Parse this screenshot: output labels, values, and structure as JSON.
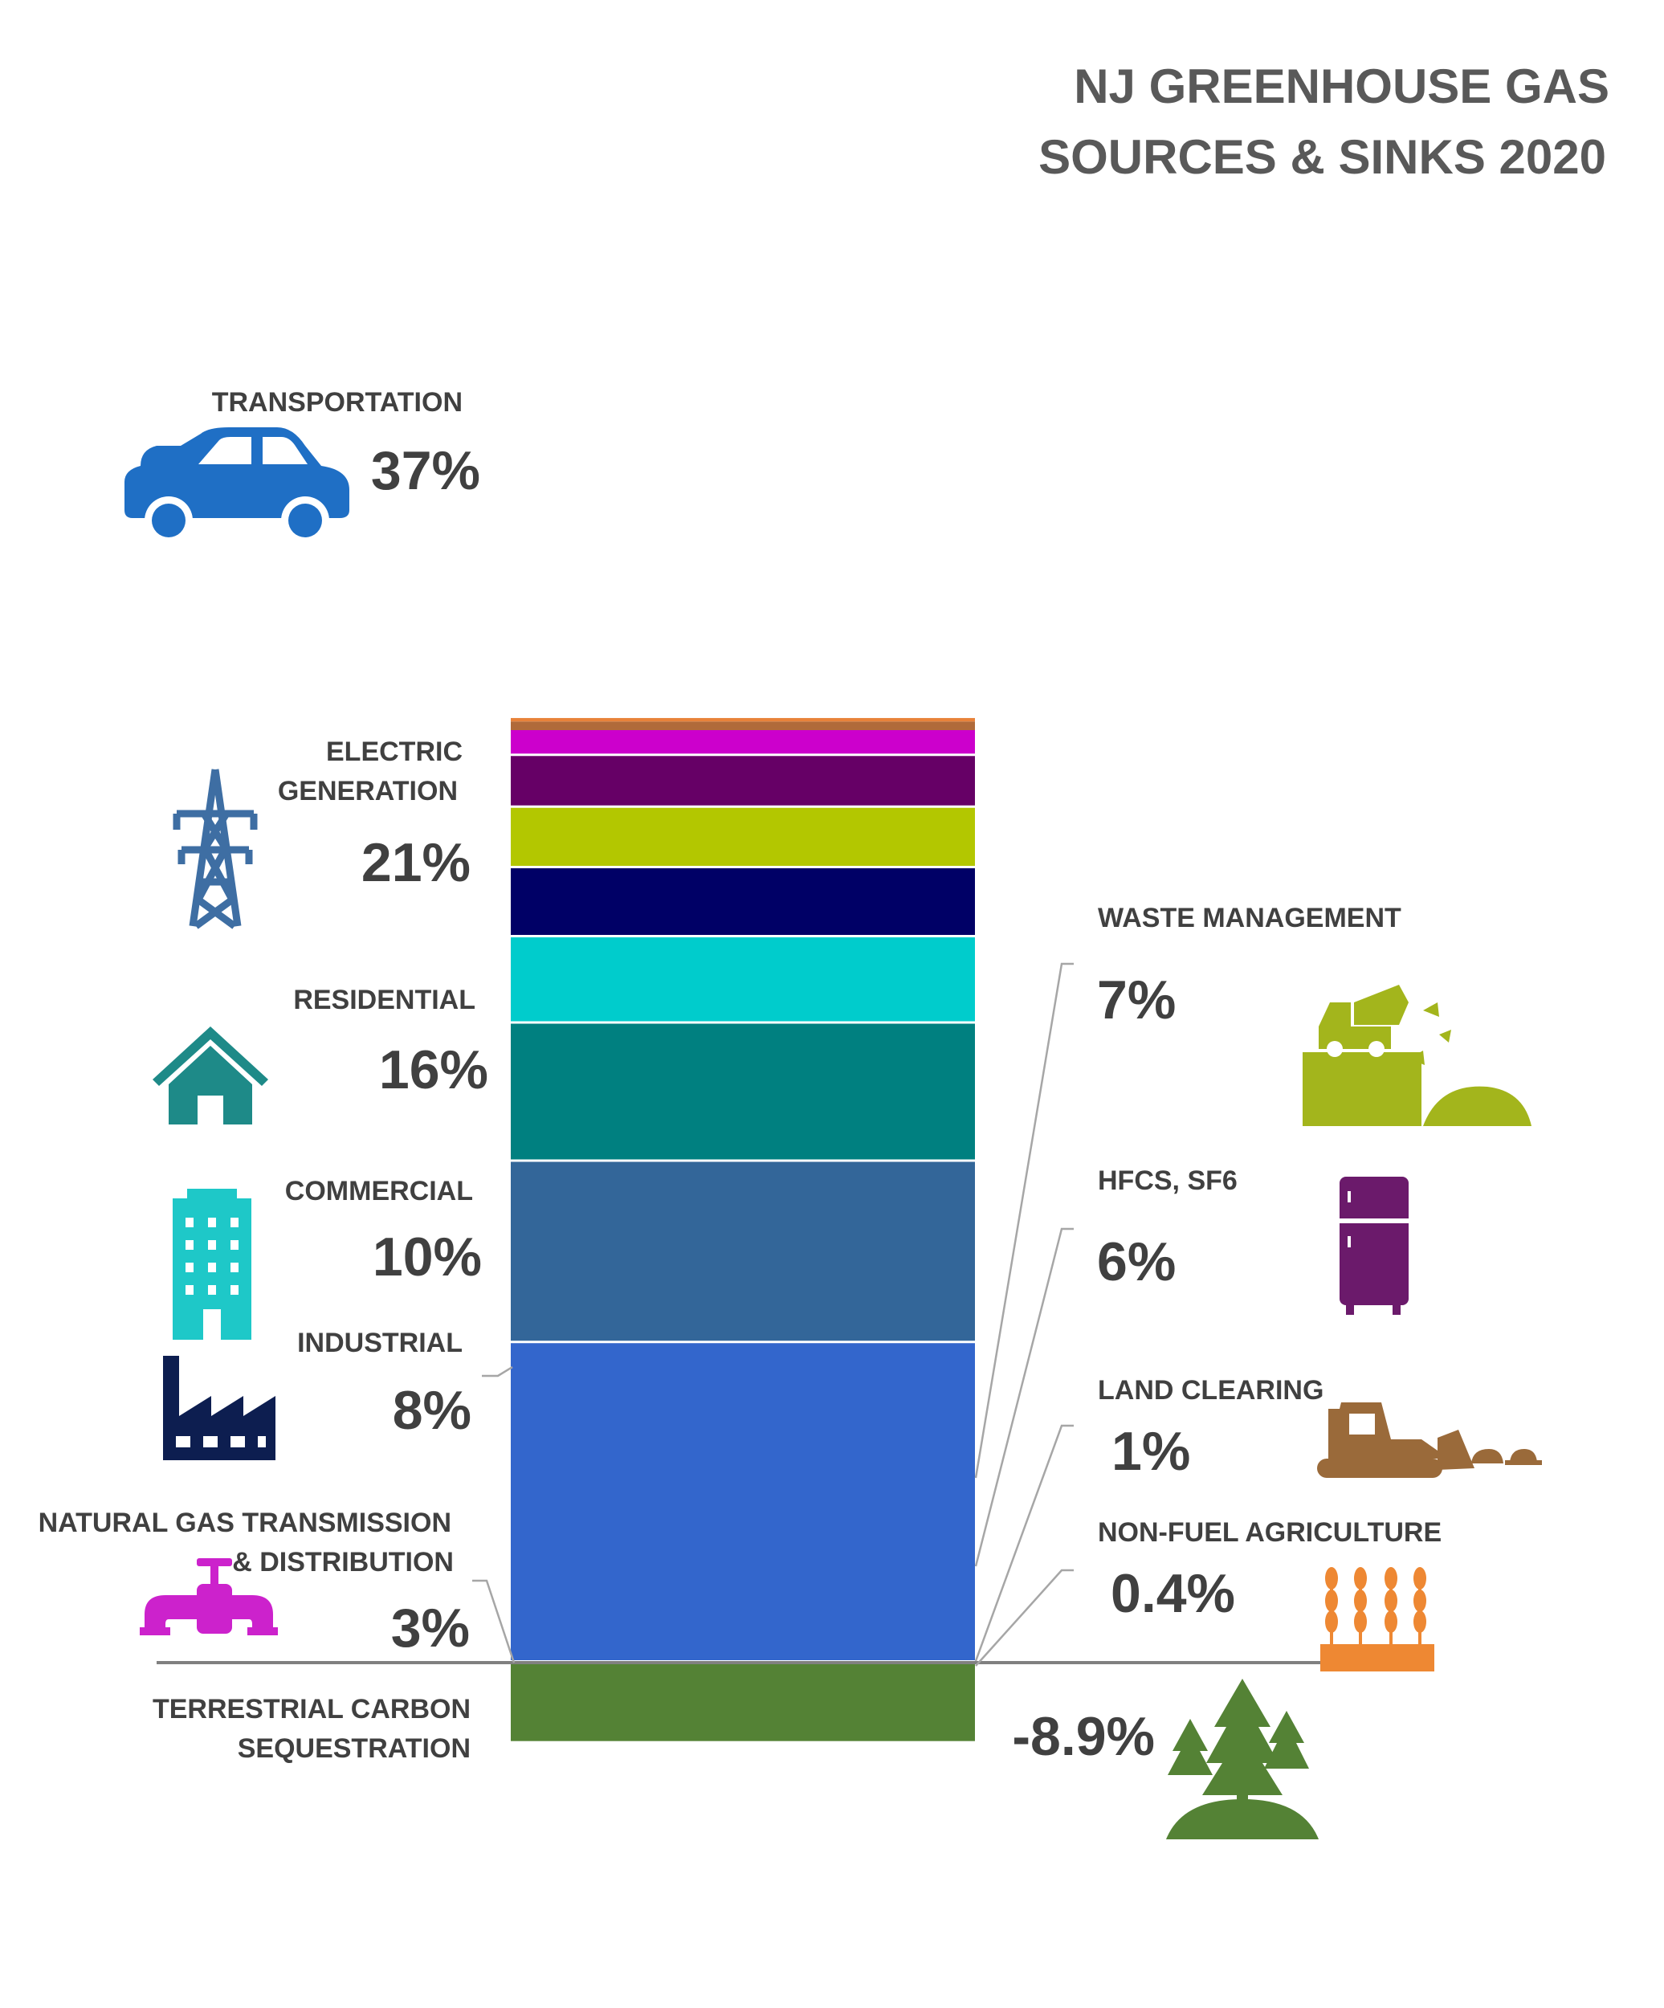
{
  "title": {
    "line1": "NJ GREENHOUSE GAS",
    "line2": "SOURCES & SINKS 2020"
  },
  "chart_data": {
    "type": "bar",
    "stacked": true,
    "ylim": [
      -8.9,
      100
    ],
    "grid": false,
    "legend": "none",
    "categories": [
      {
        "key": "transportation",
        "label_lines": [
          "TRANSPORTATION"
        ],
        "value": 37,
        "value_label": "37%",
        "color": "#3366cc",
        "icon": "car-icon"
      },
      {
        "key": "electric",
        "label_lines": [
          "ELECTRIC",
          "GENERATION"
        ],
        "value": 21,
        "value_label": "21%",
        "color": "#336699",
        "icon": "transmission-tower-icon"
      },
      {
        "key": "residential",
        "label_lines": [
          "RESIDENTIAL"
        ],
        "value": 16,
        "value_label": "16%",
        "color": "#008080",
        "icon": "house-icon"
      },
      {
        "key": "commercial",
        "label_lines": [
          "COMMERCIAL"
        ],
        "value": 10,
        "value_label": "10%",
        "color": "#00cccc",
        "icon": "office-building-icon"
      },
      {
        "key": "industrial",
        "label_lines": [
          "INDUSTRIAL"
        ],
        "value": 8,
        "value_label": "8%",
        "color": "#000066",
        "icon": "factory-icon"
      },
      {
        "key": "waste",
        "label_lines": [
          "WASTE MANAGEMENT"
        ],
        "value": 7,
        "value_label": "7%",
        "color": "#b3c700",
        "icon": "dump-truck-icon"
      },
      {
        "key": "hfcs",
        "label_lines": [
          "HFCS, SF6"
        ],
        "value": 6,
        "value_label": "6%",
        "color": "#660066",
        "icon": "refrigerator-icon"
      },
      {
        "key": "natgas",
        "label_lines": [
          "NATURAL GAS TRANSMISSION",
          "& DISTRIBUTION"
        ],
        "value": 3,
        "value_label": "3%",
        "color": "#cc00cc",
        "icon": "pipe-valve-icon"
      },
      {
        "key": "land",
        "label_lines": [
          "LAND CLEARING"
        ],
        "value": 1,
        "value_label": "1%",
        "color": "#b06a3a",
        "icon": "bulldozer-icon"
      },
      {
        "key": "agri",
        "label_lines": [
          "NON-FUEL AGRICULTURE"
        ],
        "value": 0.4,
        "value_label": "0.4%",
        "color": "#e8823a",
        "icon": "wheat-icon"
      },
      {
        "key": "sequestration",
        "label_lines": [
          "TERRESTRIAL CARBON",
          "SEQUESTRATION"
        ],
        "value": -8.9,
        "value_label": "-8.9%",
        "color": "#548235",
        "icon": "trees-icon"
      }
    ]
  },
  "icon_colors": {
    "car": "#1f6fc5",
    "tower": "#3e6ea3",
    "house": "#1e8a88",
    "building": "#1ec8c8",
    "factory": "#0d1e50",
    "truck": "#a3b51c",
    "fridge": "#6b1a6b",
    "valve": "#cc22cc",
    "bulldozer": "#9a6a3a",
    "wheat": "#ee8833",
    "trees": "#548235"
  }
}
